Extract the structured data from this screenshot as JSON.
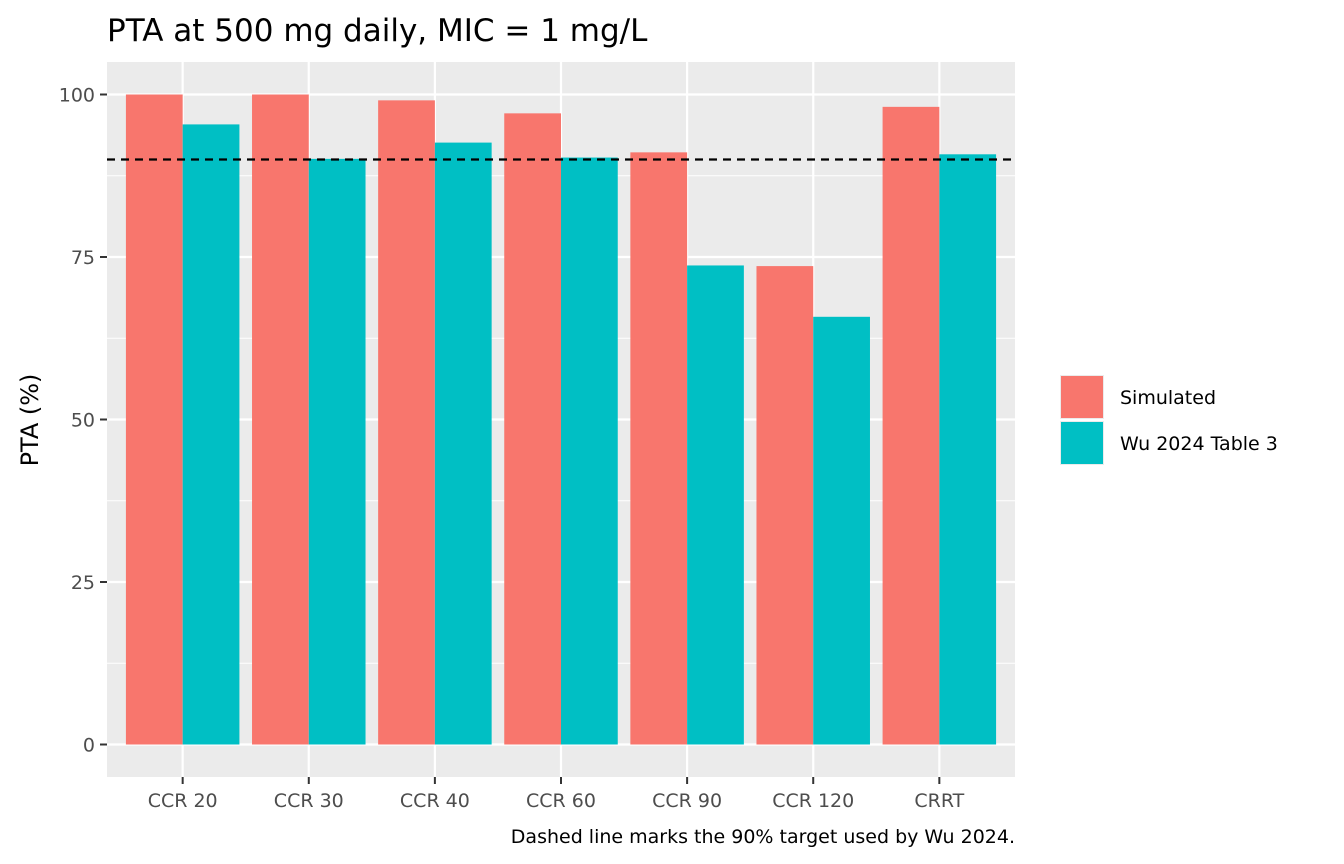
{
  "chart_data": {
    "type": "bar",
    "title": "PTA at 500 mg daily, MIC = 1 mg/L",
    "xlabel": "",
    "ylabel": "PTA (%)",
    "caption": "Dashed line marks the 90% target used by Wu 2024.",
    "categories": [
      "CCR 20",
      "CCR 30",
      "CCR 40",
      "CCR 60",
      "CCR 90",
      "CCR 120",
      "CRRT"
    ],
    "series": [
      {
        "name": "Simulated",
        "color": "#F8766D",
        "values": [
          100,
          100,
          99.1,
          97.1,
          91.1,
          73.6,
          98.1
        ]
      },
      {
        "name": "Wu 2024 Table 3",
        "color": "#00BFC4",
        "values": [
          95.4,
          90.1,
          92.6,
          90.3,
          73.7,
          65.8,
          90.8
        ]
      }
    ],
    "ylim": [
      -5,
      105
    ],
    "yticks": [
      0,
      25,
      50,
      75,
      100
    ],
    "yticks_labels": [
      "0",
      "25",
      "50",
      "75",
      "100"
    ],
    "reference_line": {
      "y": 90,
      "style": "dashed",
      "color": "#000000"
    },
    "grid": true,
    "panel_background": "#EBEBEB",
    "legend_position": "right"
  }
}
